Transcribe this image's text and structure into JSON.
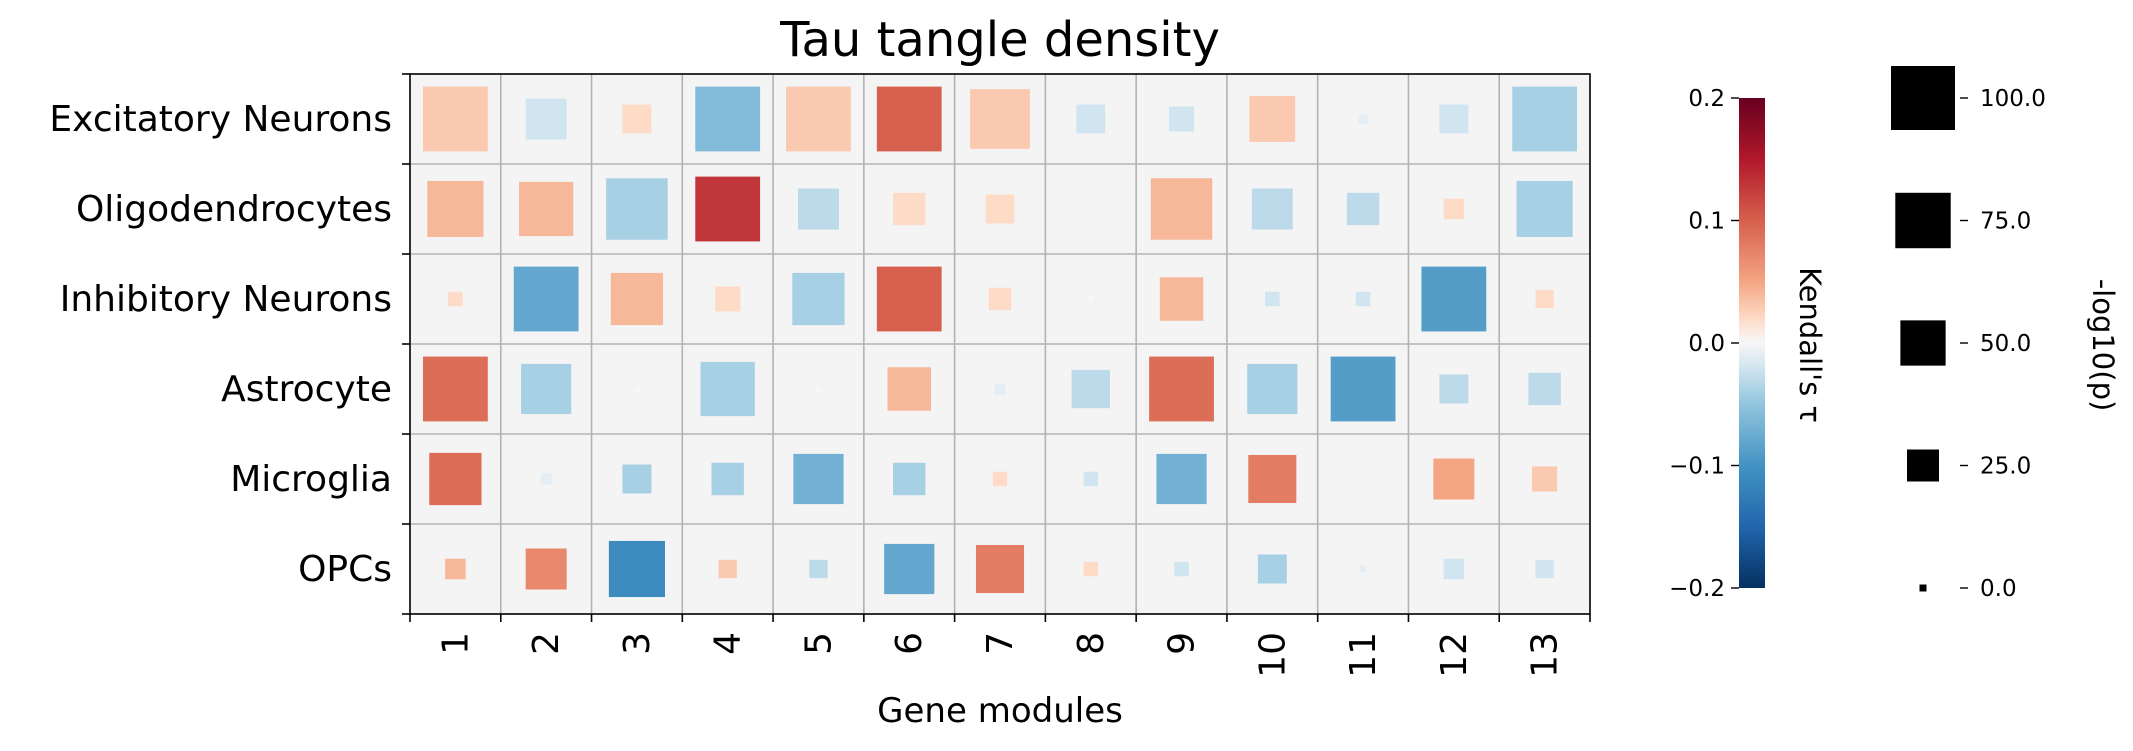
{
  "chart_data": {
    "type": "heatmap",
    "title": "Tau tangle density",
    "xlabel": "Gene modules",
    "ylabel": "",
    "rows": [
      "Excitatory Neurons",
      "Oligodendrocytes",
      "Inhibitory Neurons",
      "Astrocyte",
      "Microglia",
      "OPCs"
    ],
    "columns": [
      "1",
      "2",
      "3",
      "4",
      "5",
      "6",
      "7",
      "8",
      "9",
      "10",
      "11",
      "12",
      "13"
    ],
    "tau": [
      [
        0.03,
        -0.02,
        0.02,
        -0.06,
        0.03,
        0.1,
        0.03,
        -0.02,
        -0.02,
        0.03,
        -0.01,
        -0.02,
        -0.04
      ],
      [
        0.04,
        0.04,
        -0.04,
        0.13,
        -0.03,
        0.02,
        0.02,
        0.0,
        0.04,
        -0.03,
        -0.03,
        0.02,
        -0.04
      ],
      [
        0.02,
        -0.08,
        0.04,
        0.02,
        -0.04,
        0.1,
        0.02,
        0.0,
        0.04,
        -0.02,
        -0.02,
        -0.09,
        0.02
      ],
      [
        0.09,
        -0.04,
        0.0,
        -0.04,
        0.0,
        0.04,
        -0.01,
        -0.03,
        0.09,
        -0.04,
        -0.09,
        -0.03,
        -0.03
      ],
      [
        0.09,
        -0.01,
        -0.04,
        -0.04,
        -0.07,
        -0.04,
        0.02,
        -0.02,
        -0.07,
        0.08,
        0.0,
        0.05,
        0.03
      ],
      [
        0.04,
        0.07,
        -0.11,
        0.03,
        -0.03,
        -0.08,
        0.08,
        0.02,
        -0.02,
        -0.04,
        -0.01,
        -0.02,
        -0.02
      ]
    ],
    "neg_log10_p": [
      [
        100,
        40,
        20,
        100,
        100,
        100,
        85,
        20,
        15,
        50,
        2,
        20,
        100
      ],
      [
        75,
        70,
        90,
        100,
        40,
        25,
        20,
        0,
        90,
        40,
        25,
        10,
        75
      ],
      [
        5,
        100,
        65,
        15,
        65,
        100,
        12,
        1,
        45,
        5,
        5,
        100,
        8
      ],
      [
        100,
        60,
        1,
        70,
        1,
        45,
        3,
        35,
        100,
        60,
        100,
        20,
        25
      ],
      [
        65,
        3,
        20,
        25,
        60,
        25,
        5,
        5,
        60,
        55,
        0,
        40,
        15
      ],
      [
        10,
        40,
        75,
        8,
        8,
        60,
        55,
        5,
        5,
        20,
        1,
        10,
        8
      ]
    ],
    "colorbar": {
      "label": "Kendall's τ",
      "ticks": [
        "0.2",
        "0.1",
        "0.0",
        "−0.1",
        "−0.2"
      ],
      "range": [
        -0.2,
        0.2
      ],
      "colormap": "RdBu_r"
    },
    "size_legend": {
      "label": "-log10(p)",
      "ticks": [
        "100.0",
        "75.0",
        "50.0",
        "25.0",
        "0.0"
      ],
      "range": [
        0,
        100
      ],
      "color": "#000000"
    },
    "grid": true,
    "cell_background": "#f4f4f4",
    "grid_color": "#b3b3b3"
  }
}
